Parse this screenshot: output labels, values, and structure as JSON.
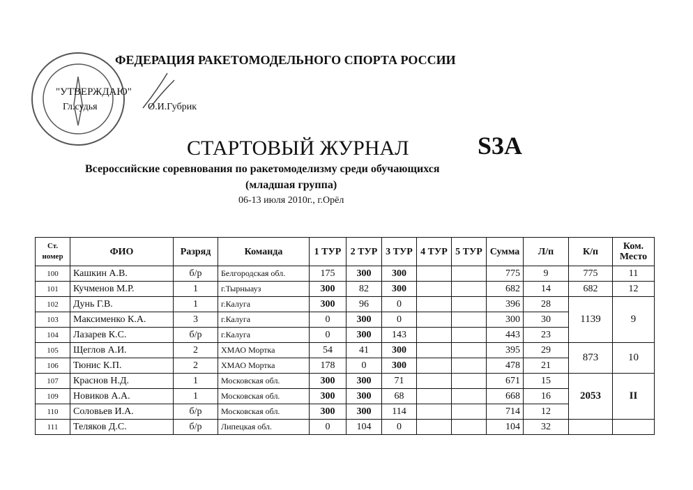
{
  "header": {
    "federation": "ФЕДЕРАЦИЯ РАКЕТОМОДЕЛЬНОГО  СПОРТА РОССИИ",
    "approval": "\"УТВЕРЖДАЮ\"",
    "judge_role": "Гл.судья",
    "judge_name": "О.И.Губрик",
    "title": "СТАРТОВЫЙ ЖУРНАЛ",
    "class": "S3A",
    "subtitle": "Всероссийские соревнования по ракетомоделизму среди обучающихся",
    "group": "(младшая группа)",
    "date": "06-13 июля 2010г., г.Орёл"
  },
  "table": {
    "columns": [
      "Ст. номер",
      "ФИО",
      "Разряд",
      "Команда",
      "1 ТУР",
      "2 ТУР",
      "3 ТУР",
      "4 ТУР",
      "5 ТУР",
      "Сумма",
      "Л/п",
      "К/п",
      "Ком. Место"
    ],
    "teams": [
      {
        "members": [
          {
            "num": 100,
            "name": "Кашкин А.В.",
            "rank": "б/р",
            "team": "Белгородская обл.",
            "scores": [
              175,
              300,
              300
            ],
            "sum": 775,
            "place": 9
          }
        ],
        "kp": 775,
        "place": 11
      },
      {
        "members": [
          {
            "num": 101,
            "name": "Кучменов М.Р.",
            "rank": 1,
            "team": "г.Тырныауз",
            "scores": [
              300,
              82,
              300
            ],
            "sum": 682,
            "place": 14
          }
        ],
        "kp": 682,
        "place": 12
      },
      {
        "members": [
          {
            "num": 102,
            "name": "Дунь Г.В.",
            "rank": 1,
            "team": "г.Калуга",
            "scores": [
              300,
              96,
              0
            ],
            "sum": 396,
            "place": 28
          },
          {
            "num": 103,
            "name": "Максименко К.А.",
            "rank": 3,
            "team": "г.Калуга",
            "scores": [
              0,
              300,
              0
            ],
            "sum": 300,
            "place": 30
          },
          {
            "num": 104,
            "name": "Лазарев К.С.",
            "rank": "б/р",
            "team": "г.Калуга",
            "scores": [
              0,
              300,
              143
            ],
            "sum": 443,
            "place": 23
          }
        ],
        "kp": 1139,
        "place": 9
      },
      {
        "members": [
          {
            "num": 105,
            "name": "Щеглов А.И.",
            "rank": 2,
            "team": "ХМАО Мортка",
            "scores": [
              54,
              41,
              300
            ],
            "sum": 395,
            "place": 29
          },
          {
            "num": 106,
            "name": "Тюнис К.П.",
            "rank": 2,
            "team": "ХМАО Мортка",
            "scores": [
              178,
              0,
              300
            ],
            "sum": 478,
            "place": 21
          }
        ],
        "kp": 873,
        "place": 10
      },
      {
        "members": [
          {
            "num": 107,
            "name": "Краснов Н.Д.",
            "rank": 1,
            "team": "Московская обл.",
            "scores": [
              300,
              300,
              71
            ],
            "sum": 671,
            "place": 15
          },
          {
            "num": 109,
            "name": "Новиков А.А.",
            "rank": 1,
            "team": "Московская обл.",
            "scores": [
              300,
              300,
              68
            ],
            "sum": 668,
            "place": 16
          },
          {
            "num": 110,
            "name": "Соловьев И.А.",
            "rank": "б/р",
            "team": "Московская обл.",
            "scores": [
              300,
              300,
              114
            ],
            "sum": 714,
            "place": 12
          }
        ],
        "kp": 2053,
        "place": "II"
      },
      {
        "members": [
          {
            "num": 111,
            "name": "Теляков Д.С.",
            "rank": "б/р",
            "team": "Липецкая обл.",
            "scores": [
              0,
              104,
              0
            ],
            "sum": 104,
            "place": 32
          }
        ]
      }
    ]
  }
}
